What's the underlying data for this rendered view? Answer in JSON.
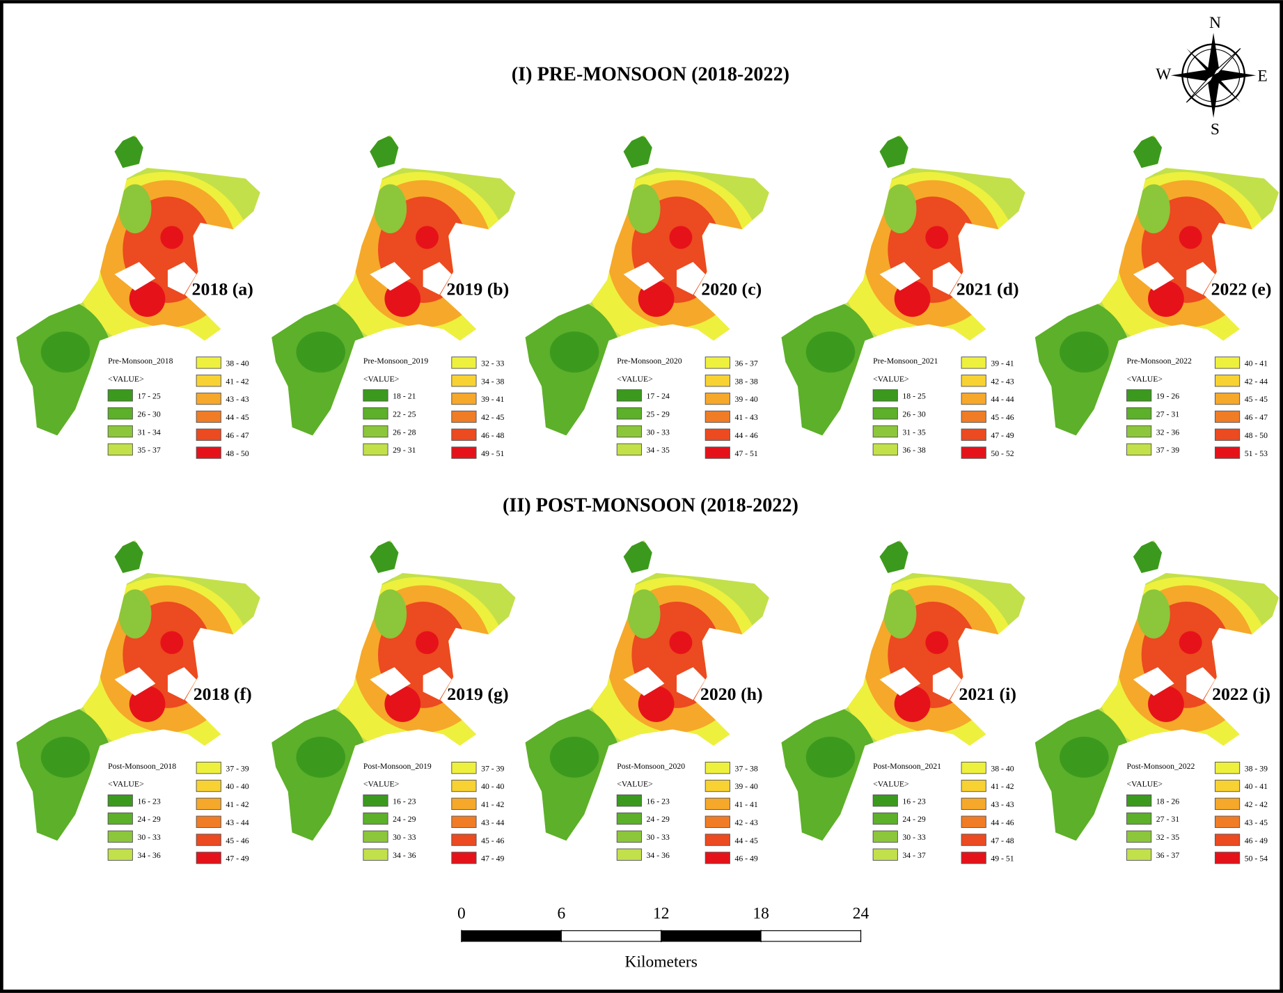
{
  "title_pre": "(I) PRE-MONSOON (2018-2022)",
  "title_post": "(II) POST-MONSOON (2018-2022)",
  "compass": {
    "n": "N",
    "e": "E",
    "s": "S",
    "w": "W"
  },
  "legend_colors": [
    "#3b9a1e",
    "#5cb02a",
    "#8cc63a",
    "#c2e04a",
    "#eef03e",
    "#f7d232",
    "#f6a82a",
    "#f07c26",
    "#ec4a20",
    "#e6121a"
  ],
  "panels": [
    {
      "label": "2018 (a)",
      "legend_title": "Pre-Monsoon_2018",
      "legend_field": "<VALUE>",
      "classes": [
        "17 - 25",
        "26 - 30",
        "31 - 34",
        "35 - 37",
        "38 - 40",
        "41 - 42",
        "43 - 43",
        "44 - 45",
        "46 - 47",
        "48 - 50"
      ]
    },
    {
      "label": "2019 (b)",
      "legend_title": "Pre-Monsoon_2019",
      "legend_field": "<VALUE>",
      "classes": [
        "18 - 21",
        "22 - 25",
        "26 - 28",
        "29 - 31",
        "32 - 33",
        "34 - 38",
        "39 - 41",
        "42 - 45",
        "46 - 48",
        "49 - 51"
      ]
    },
    {
      "label": "2020 (c)",
      "legend_title": "Pre-Monsoon_2020",
      "legend_field": "<VALUE>",
      "classes": [
        "17 - 24",
        "25 - 29",
        "30 - 33",
        "34 - 35",
        "36 - 37",
        "38 - 38",
        "39 - 40",
        "41 - 43",
        "44 - 46",
        "47 - 51"
      ]
    },
    {
      "label": "2021 (d)",
      "legend_title": "Pre-Monsoon_2021",
      "legend_field": "<VALUE>",
      "classes": [
        "18 - 25",
        "26 - 30",
        "31 - 35",
        "36 - 38",
        "39 - 41",
        "42 - 43",
        "44 - 44",
        "45 - 46",
        "47 - 49",
        "50 - 52"
      ]
    },
    {
      "label": "2022 (e)",
      "legend_title": "Pre-Monsoon_2022",
      "legend_field": "<VALUE>",
      "classes": [
        "19 - 26",
        "27 - 31",
        "32 - 36",
        "37 - 39",
        "40 - 41",
        "42 - 44",
        "45 - 45",
        "46 - 47",
        "48 - 50",
        "51 - 53"
      ]
    },
    {
      "label": "2018 (f)",
      "legend_title": "Post-Monsoon_2018",
      "legend_field": "<VALUE>",
      "classes": [
        "16 - 23",
        "24 - 29",
        "30 - 33",
        "34 - 36",
        "37 - 39",
        "40 - 40",
        "41 - 42",
        "43 - 44",
        "45 - 46",
        "47 - 49"
      ]
    },
    {
      "label": "2019 (g)",
      "legend_title": "Post-Monsoon_2019",
      "legend_field": "<VALUE>",
      "classes": [
        "16 - 23",
        "24 - 29",
        "30 - 33",
        "34 - 36",
        "37 - 39",
        "40 - 40",
        "41 - 42",
        "43 - 44",
        "45 - 46",
        "47 - 49"
      ]
    },
    {
      "label": "2020 (h)",
      "legend_title": "Post-Monsoon_2020",
      "legend_field": "<VALUE>",
      "classes": [
        "16 - 23",
        "24 - 29",
        "30 - 33",
        "34 - 36",
        "37 - 38",
        "39 - 40",
        "41 - 41",
        "42 - 43",
        "44 - 45",
        "46 - 49"
      ]
    },
    {
      "label": "2021 (i)",
      "legend_title": "Post-Monsoon_2021",
      "legend_field": "<VALUE>",
      "classes": [
        "16 - 23",
        "24 - 29",
        "30 - 33",
        "34 - 37",
        "38 - 40",
        "41 - 42",
        "43 - 43",
        "44 - 46",
        "47 - 48",
        "49 - 51"
      ]
    },
    {
      "label": "2022 (j)",
      "legend_title": "Post-Monsoon_2022",
      "legend_field": "<VALUE>",
      "classes": [
        "18 - 26",
        "27 - 31",
        "32 - 35",
        "36 - 37",
        "38 - 39",
        "40 - 41",
        "42 - 42",
        "43 - 45",
        "46 - 49",
        "50 - 54"
      ]
    }
  ],
  "scale_bar": {
    "ticks": [
      0,
      6,
      12,
      18,
      24
    ],
    "unit": "Kilometers"
  }
}
